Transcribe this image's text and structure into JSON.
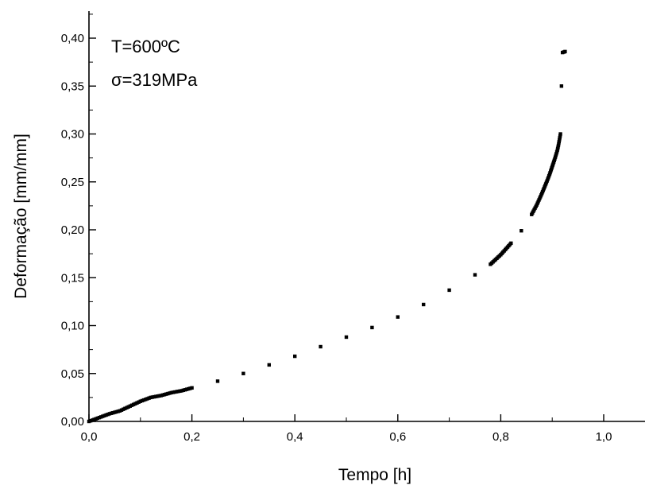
{
  "chart_data": {
    "type": "scatter",
    "title": "",
    "xlabel": "Tempo [h]",
    "ylabel": "Deformação [mm/mm]",
    "xlim": [
      0.0,
      1.1
    ],
    "ylim": [
      0.0,
      0.42
    ],
    "x_ticks": [
      "0,0",
      "0,2",
      "0,4",
      "0,6",
      "0,8",
      "1,0"
    ],
    "x_tick_values": [
      0.0,
      0.2,
      0.4,
      0.6,
      0.8,
      1.0
    ],
    "y_ticks": [
      "0,00",
      "0,05",
      "0,10",
      "0,15",
      "0,20",
      "0,25",
      "0,30",
      "0,35",
      "0,40"
    ],
    "y_tick_values": [
      0.0,
      0.05,
      0.1,
      0.15,
      0.2,
      0.25,
      0.3,
      0.35,
      0.4
    ],
    "grid": false,
    "legend": "none",
    "annotations": [
      "T=600ºC",
      "σ=319MPa"
    ],
    "series": [
      {
        "x": [
          0.0,
          0.02,
          0.04,
          0.06,
          0.08,
          0.1,
          0.12,
          0.14,
          0.16,
          0.18,
          0.2,
          0.25,
          0.3,
          0.35,
          0.4,
          0.45,
          0.5,
          0.55,
          0.6,
          0.65,
          0.7,
          0.75,
          0.78,
          0.8,
          0.82,
          0.84,
          0.86,
          0.87,
          0.88,
          0.89,
          0.895,
          0.9,
          0.905,
          0.91,
          0.912,
          0.914,
          0.916,
          0.918,
          0.92,
          0.925
        ],
        "y": [
          0.0,
          0.004,
          0.008,
          0.011,
          0.016,
          0.021,
          0.025,
          0.027,
          0.03,
          0.032,
          0.035,
          0.042,
          0.05,
          0.059,
          0.068,
          0.078,
          0.088,
          0.098,
          0.109,
          0.122,
          0.137,
          0.153,
          0.164,
          0.174,
          0.186,
          0.199,
          0.216,
          0.226,
          0.238,
          0.251,
          0.258,
          0.266,
          0.274,
          0.283,
          0.288,
          0.294,
          0.3,
          0.35,
          0.385,
          0.386
        ]
      }
    ]
  }
}
